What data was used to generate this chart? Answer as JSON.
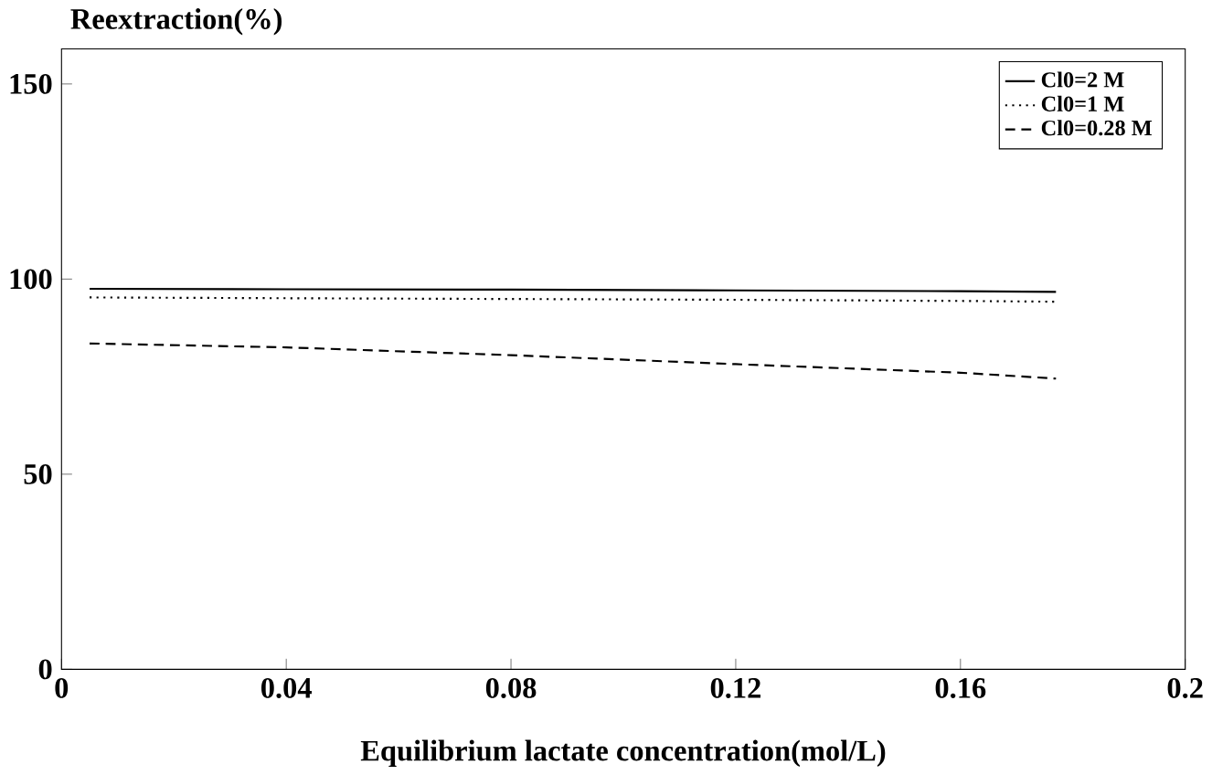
{
  "chart_data": {
    "type": "line",
    "ylabel": "Reextraction(%)",
    "xlabel": "Equilibrium lactate concentration(mol/L)",
    "xlim": [
      0,
      0.2
    ],
    "xticks": [
      0,
      0.04,
      0.08,
      0.12,
      0.16,
      0.2
    ],
    "ylim": [
      0,
      159
    ],
    "yticks": [
      0,
      50,
      100,
      150
    ],
    "legend": "top right",
    "grid": false,
    "marker": "none",
    "series": [
      {
        "name": "Cl0=2 M",
        "color": "#000000",
        "line_style": "solid",
        "x": [
          0.005,
          0.04,
          0.08,
          0.12,
          0.16,
          0.177
        ],
        "values": [
          97.5,
          97.4,
          97.3,
          97.1,
          96.9,
          96.7
        ]
      },
      {
        "name": "Cl0=1 M",
        "color": "#000000",
        "line_style": "dotted",
        "x": [
          0.005,
          0.04,
          0.08,
          0.12,
          0.16,
          0.177
        ],
        "values": [
          95.3,
          95.1,
          94.9,
          94.7,
          94.4,
          94.2
        ]
      },
      {
        "name": "Cl0=0.28 M",
        "color": "#000000",
        "line_style": "dashed",
        "x": [
          0.005,
          0.04,
          0.08,
          0.12,
          0.16,
          0.177
        ],
        "values": [
          83.5,
          82.5,
          80.5,
          78.2,
          76,
          74.5
        ]
      }
    ]
  }
}
